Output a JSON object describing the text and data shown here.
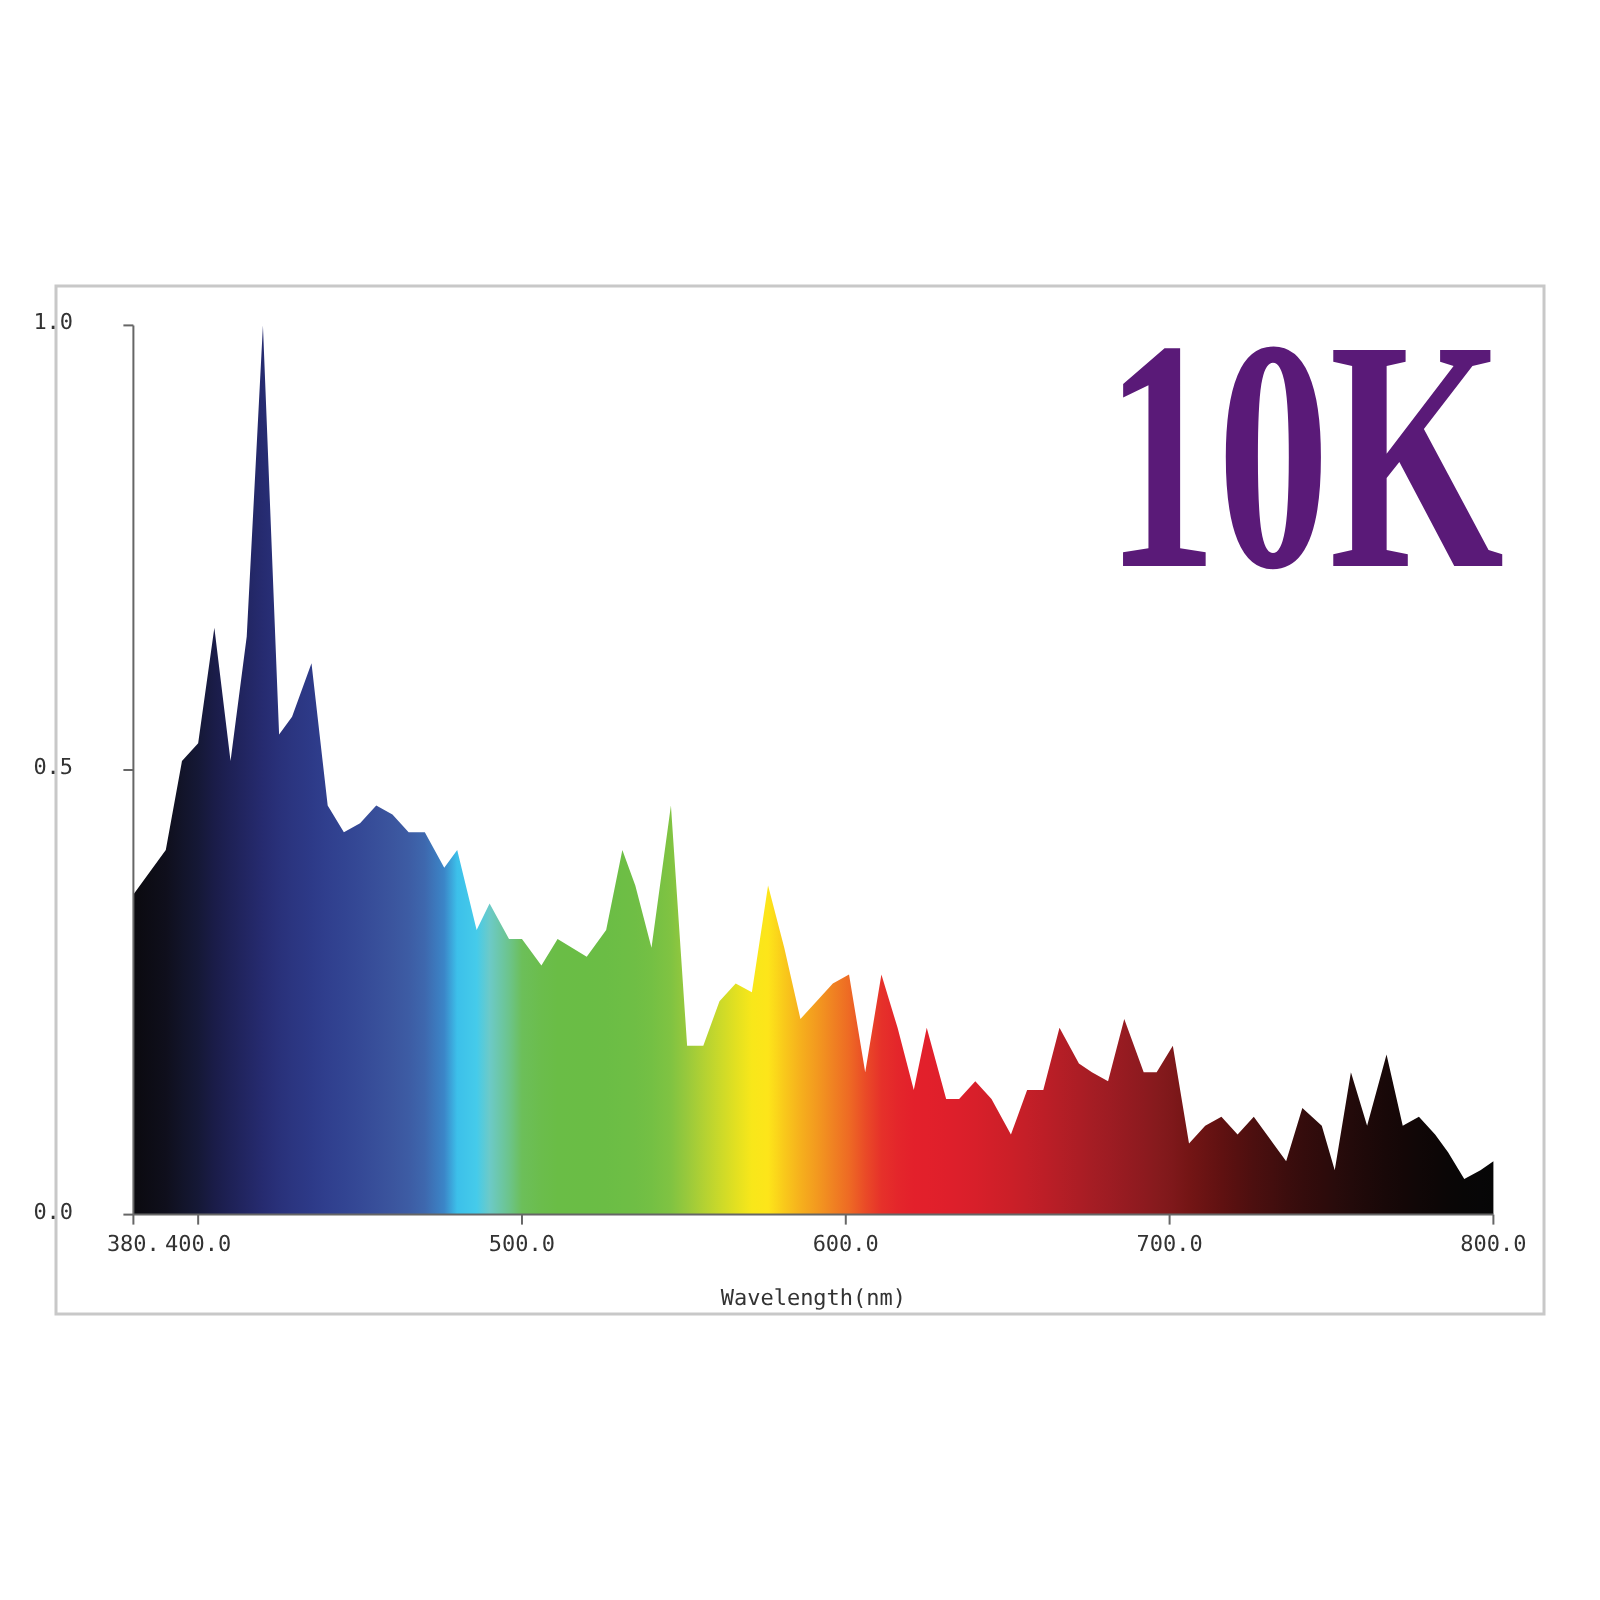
{
  "chart_data": {
    "type": "area",
    "title": "10K",
    "xlabel": "Wavelength(nm)",
    "x": [
      380,
      390,
      395,
      400,
      405,
      410,
      415,
      420,
      425,
      429,
      435,
      440,
      445,
      450,
      455,
      460,
      465,
      470,
      476,
      480,
      486,
      490,
      496,
      500,
      506,
      511,
      520,
      526,
      531,
      535,
      540,
      546,
      551,
      556,
      561,
      566,
      571,
      576,
      581,
      586,
      591,
      596,
      601,
      606,
      611,
      616,
      621,
      625,
      631,
      635,
      640,
      645,
      651,
      656,
      661,
      666,
      672,
      676,
      681,
      686,
      692,
      696,
      701,
      706,
      711,
      716,
      721,
      726,
      732,
      736,
      741,
      747,
      751,
      756,
      761,
      767,
      772,
      777,
      782,
      786,
      791,
      796,
      800
    ],
    "values": [
      0.36,
      0.41,
      0.51,
      0.53,
      0.66,
      0.51,
      0.65,
      1.0,
      0.54,
      0.56,
      0.62,
      0.46,
      0.43,
      0.44,
      0.46,
      0.45,
      0.43,
      0.43,
      0.39,
      0.41,
      0.32,
      0.35,
      0.31,
      0.31,
      0.28,
      0.31,
      0.29,
      0.32,
      0.41,
      0.37,
      0.3,
      0.46,
      0.19,
      0.19,
      0.24,
      0.26,
      0.25,
      0.37,
      0.3,
      0.22,
      0.24,
      0.26,
      0.27,
      0.16,
      0.27,
      0.21,
      0.14,
      0.21,
      0.13,
      0.13,
      0.15,
      0.13,
      0.09,
      0.14,
      0.14,
      0.21,
      0.17,
      0.16,
      0.15,
      0.22,
      0.16,
      0.16,
      0.19,
      0.08,
      0.1,
      0.11,
      0.09,
      0.11,
      0.08,
      0.06,
      0.12,
      0.1,
      0.05,
      0.16,
      0.1,
      0.18,
      0.1,
      0.11,
      0.09,
      0.07,
      0.04,
      0.05,
      0.06
    ],
    "colors": [
      "#0b0a0f",
      "#0f0f1c",
      "#121429",
      "#151836",
      "#1a1c48",
      "#1e2156",
      "#222663",
      "#262b70",
      "#29317a",
      "#2b3580",
      "#2d3a88",
      "#303f8e",
      "#324492",
      "#354996",
      "#384f9a",
      "#3b559e",
      "#3d5ca4",
      "#3e68ae",
      "#3b86c8",
      "#3cc0ea",
      "#45cbea",
      "#6ccac8",
      "#6cc48c",
      "#6cbf5a",
      "#6bbd4c",
      "#6abd46",
      "#6abd45",
      "#6bbd45",
      "#6dbe45",
      "#6fbe45",
      "#74c044",
      "#80c342",
      "#98c93c",
      "#b2d133",
      "#cad92a",
      "#e2e021",
      "#f8e71a",
      "#fde51a",
      "#f9c91b",
      "#f6b01d",
      "#f39a1f",
      "#f08222",
      "#ee6a24",
      "#ea4b27",
      "#e6312a",
      "#e4262b",
      "#e3202b",
      "#e2202b",
      "#df1f2b",
      "#dc1f2b",
      "#d81f2a",
      "#d21f29",
      "#cb1f28",
      "#c41f28",
      "#bd1e27",
      "#b51e26",
      "#ac1d25",
      "#a51d24",
      "#9e1c23",
      "#961b21",
      "#8d1a1f",
      "#861a1d",
      "#7e181a",
      "#741515",
      "#6a1313",
      "#601111",
      "#561010",
      "#4c0f0f",
      "#430e0e",
      "#3c0d0d",
      "#350c0c",
      "#2e0b0b",
      "#290b0b",
      "#230a0a",
      "#1e0909",
      "#180808",
      "#140707",
      "#100707",
      "#0d0606",
      "#0a0606",
      "#080606",
      "#070607",
      "#060606"
    ],
    "xlim": [
      380,
      800
    ],
    "ylim": [
      0,
      1
    ],
    "xticks": [
      {
        "value": 380,
        "label": "380."
      },
      {
        "value": 400,
        "label": "400.0"
      },
      {
        "value": 500,
        "label": "500.0"
      },
      {
        "value": 600,
        "label": "600.0"
      },
      {
        "value": 700,
        "label": "700.0"
      },
      {
        "value": 800,
        "label": "800.0"
      }
    ],
    "yticks": [
      {
        "value": 0,
        "label": "0.0"
      },
      {
        "value": 0.5,
        "label": "0.5"
      },
      {
        "value": 1,
        "label": "1.0"
      }
    ],
    "grid": false
  }
}
